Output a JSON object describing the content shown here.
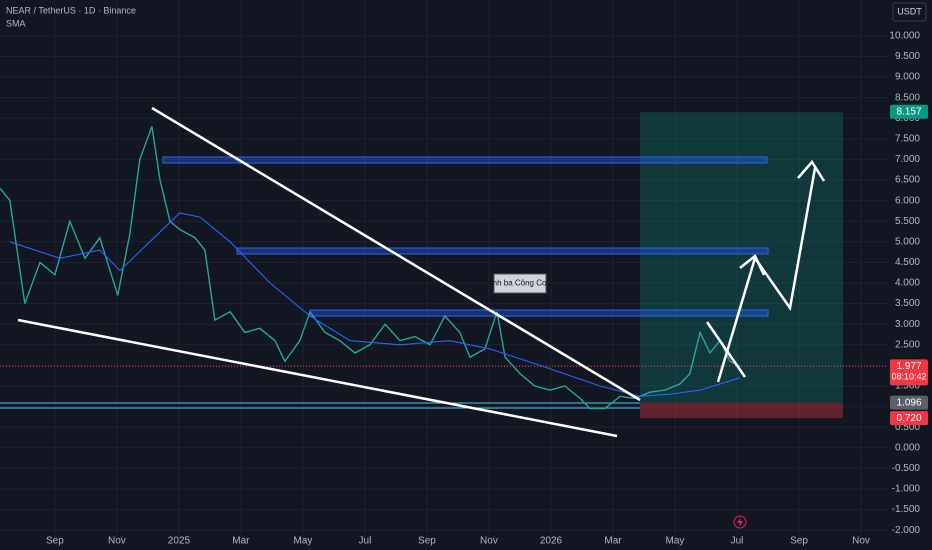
{
  "chart_data": {
    "type": "line",
    "title": "NEAR / TetherUS · 1D · Binance",
    "indicator": "SMA",
    "currency": "USDT",
    "annotation": "Anh ba Công Cole",
    "countdown": "08:10:42",
    "grid": true,
    "xlim": [
      -1.77,
      26.87
    ],
    "xticks": [
      {
        "value": 0,
        "label": "Sep"
      },
      {
        "value": 2,
        "label": "Nov"
      },
      {
        "value": 4,
        "label": "2025"
      },
      {
        "value": 6,
        "label": "Mar"
      },
      {
        "value": 8,
        "label": "May"
      },
      {
        "value": 10,
        "label": "Jul"
      },
      {
        "value": 12,
        "label": "Sep"
      },
      {
        "value": 14,
        "label": "Nov"
      },
      {
        "value": 16,
        "label": "2026"
      },
      {
        "value": 18,
        "label": "Mar"
      },
      {
        "value": 20,
        "label": "May"
      },
      {
        "value": 22,
        "label": "Jul"
      },
      {
        "value": 24,
        "label": "Sep"
      },
      {
        "value": 26,
        "label": "Nov"
      }
    ],
    "ylim": [
      -2.19,
      10.87
    ],
    "yticks": [
      {
        "value": -2,
        "label": "-2.000"
      },
      {
        "value": -1.5,
        "label": "-1.500"
      },
      {
        "value": -1,
        "label": "-1.000"
      },
      {
        "value": -0.5,
        "label": "-0.500"
      },
      {
        "value": 0,
        "label": "0.000"
      },
      {
        "value": 0.5,
        "label": "0.500"
      },
      {
        "value": 1,
        "label": "1.000"
      },
      {
        "value": 1.5,
        "label": "1.500"
      },
      {
        "value": 2,
        "label": "2.000"
      },
      {
        "value": 2.5,
        "label": "2.500"
      },
      {
        "value": 3,
        "label": "3.000"
      },
      {
        "value": 3.5,
        "label": "3.500"
      },
      {
        "value": 4,
        "label": "4.000"
      },
      {
        "value": 4.5,
        "label": "4.500"
      },
      {
        "value": 5,
        "label": "5.000"
      },
      {
        "value": 5.5,
        "label": "5.500"
      },
      {
        "value": 6,
        "label": "6.000"
      },
      {
        "value": 6.5,
        "label": "6.500"
      },
      {
        "value": 7,
        "label": "7.000"
      },
      {
        "value": 7.5,
        "label": "7.500"
      },
      {
        "value": 8,
        "label": "8.000"
      },
      {
        "value": 8.5,
        "label": "8.500"
      },
      {
        "value": 9,
        "label": "9.000"
      },
      {
        "value": 9.5,
        "label": "9.500"
      },
      {
        "value": 10,
        "label": "10.000"
      }
    ],
    "series": [
      {
        "color": "#26a69a",
        "x": [
          -1.77,
          -1.45,
          -0.97,
          -0.48,
          0,
          0.48,
          0.97,
          1.45,
          2.03,
          2.42,
          2.74,
          3.13,
          3.39,
          3.71,
          4.03,
          4.52,
          4.84,
          5.16,
          5.65,
          6.13,
          6.61,
          7.1,
          7.42,
          7.9,
          8.23,
          8.71,
          9.19,
          9.68,
          10.16,
          10.65,
          11.13,
          11.61,
          12.1,
          12.58,
          13.06,
          13.39,
          13.87,
          14.26,
          14.52,
          15,
          15.48,
          15.97,
          16.45,
          16.94,
          17.26,
          17.74,
          18.23,
          18.71,
          19.19,
          19.68,
          20.16,
          20.48,
          20.81,
          21.13,
          21.45,
          21.77,
          22.1
        ],
        "values": [
          6.3,
          6.0,
          3.5,
          4.5,
          4.2,
          5.5,
          4.6,
          5.1,
          3.7,
          5.2,
          7.0,
          7.8,
          6.5,
          5.5,
          5.3,
          5.1,
          4.8,
          3.1,
          3.3,
          2.8,
          2.9,
          2.6,
          2.1,
          2.6,
          3.3,
          2.8,
          2.6,
          2.3,
          2.5,
          3.0,
          2.6,
          2.7,
          2.5,
          3.2,
          2.8,
          2.2,
          2.4,
          3.3,
          2.2,
          1.8,
          1.5,
          1.4,
          1.5,
          1.2,
          0.95,
          0.95,
          1.25,
          1.2,
          1.35,
          1.4,
          1.55,
          1.8,
          2.8,
          2.3,
          2.6,
          2.1,
          1.977
        ]
      },
      {
        "name": "SMA",
        "color": "#2962ff",
        "x": [
          -1.45,
          0.16,
          1.45,
          2.1,
          3.06,
          4.03,
          4.68,
          5.65,
          6.94,
          8.23,
          9.52,
          11.13,
          12.74,
          14.03,
          15.65,
          17.58,
          18.87,
          19.84,
          20.81,
          22.1
        ],
        "values": [
          5.0,
          4.6,
          4.8,
          4.3,
          5.0,
          5.7,
          5.6,
          5.0,
          4.0,
          3.2,
          2.6,
          2.5,
          2.6,
          2.4,
          2.0,
          1.5,
          1.25,
          1.3,
          1.4,
          1.7
        ]
      }
    ],
    "last_price": 1.977,
    "position": {
      "target": 8.157,
      "entry": 1.096,
      "stop": {
        "value": 0.72,
        "label": "0.720"
      }
    }
  }
}
